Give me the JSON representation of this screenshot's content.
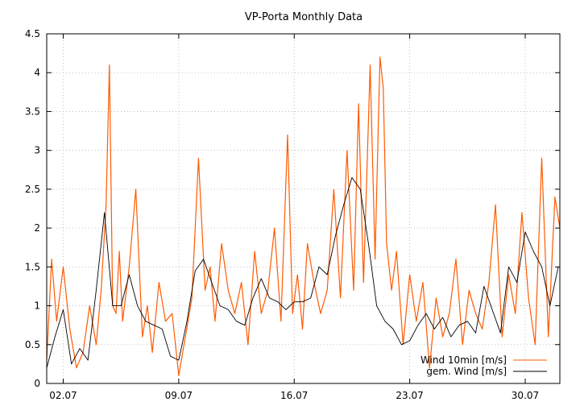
{
  "chart_data": {
    "type": "line",
    "title": "VP-Porta Monthly Data",
    "xlabel": "",
    "ylabel": "",
    "x_ticks": [
      "02.07",
      "09.07",
      "16.07",
      "23.07",
      "30.07"
    ],
    "x_tick_days": [
      2,
      9,
      16,
      23,
      30
    ],
    "xlim": [
      1,
      32.1
    ],
    "ylim": [
      0,
      4.5
    ],
    "y_ticks": [
      0,
      0.5,
      1,
      1.5,
      2,
      2.5,
      3,
      3.5,
      4,
      4.5
    ],
    "grid": true,
    "legend_position": "bottom-right",
    "series": [
      {
        "name": "Wind 10min [m/s]",
        "color": "#ff5a00",
        "x": [
          1.0,
          1.3,
          1.6,
          2.0,
          2.4,
          2.8,
          3.2,
          3.6,
          4.0,
          4.3,
          4.6,
          4.8,
          5.0,
          5.2,
          5.4,
          5.6,
          6.0,
          6.4,
          6.8,
          7.1,
          7.4,
          7.8,
          8.2,
          8.6,
          9.0,
          9.4,
          9.8,
          10.2,
          10.6,
          10.9,
          11.2,
          11.6,
          12.0,
          12.4,
          12.8,
          13.2,
          13.6,
          14.0,
          14.4,
          14.8,
          15.2,
          15.6,
          15.9,
          16.2,
          16.5,
          16.8,
          17.2,
          17.6,
          18.0,
          18.4,
          18.8,
          19.2,
          19.6,
          19.9,
          20.2,
          20.6,
          20.9,
          21.2,
          21.4,
          21.6,
          21.9,
          22.2,
          22.6,
          23.0,
          23.4,
          23.8,
          24.2,
          24.6,
          25.0,
          25.4,
          25.8,
          26.2,
          26.6,
          27.0,
          27.4,
          27.8,
          28.2,
          28.6,
          29.0,
          29.4,
          29.8,
          30.2,
          30.6,
          31.0,
          31.4,
          31.8,
          32.1
        ],
        "values": [
          0.3,
          1.6,
          0.8,
          1.5,
          0.7,
          0.2,
          0.4,
          1.0,
          0.5,
          1.2,
          2.3,
          4.1,
          1.0,
          0.9,
          1.7,
          0.8,
          1.5,
          2.5,
          0.6,
          1.0,
          0.4,
          1.3,
          0.8,
          0.9,
          0.1,
          0.6,
          1.1,
          2.9,
          1.2,
          1.5,
          0.8,
          1.8,
          1.2,
          0.9,
          1.3,
          0.5,
          1.7,
          0.9,
          1.2,
          2.0,
          0.8,
          3.2,
          0.9,
          1.4,
          0.7,
          1.8,
          1.3,
          0.9,
          1.2,
          2.5,
          1.1,
          3.0,
          1.2,
          3.6,
          1.3,
          4.1,
          1.6,
          4.2,
          3.8,
          1.8,
          1.2,
          1.7,
          0.5,
          1.4,
          0.8,
          1.3,
          0.2,
          1.1,
          0.6,
          0.9,
          1.6,
          0.5,
          1.2,
          0.9,
          0.7,
          1.3,
          2.3,
          0.6,
          1.4,
          0.9,
          2.2,
          1.1,
          0.5,
          2.9,
          0.6,
          2.4,
          2.0
        ]
      },
      {
        "name": "gem. Wind [m/s]",
        "color": "#000000",
        "x": [
          1.0,
          1.5,
          2.0,
          2.5,
          3.0,
          3.5,
          4.0,
          4.5,
          5.0,
          5.5,
          6.0,
          6.5,
          7.0,
          7.5,
          8.0,
          8.5,
          9.0,
          9.5,
          10.0,
          10.5,
          11.0,
          11.5,
          12.0,
          12.5,
          13.0,
          13.5,
          14.0,
          14.5,
          15.0,
          15.5,
          16.0,
          16.5,
          17.0,
          17.5,
          18.0,
          18.5,
          19.0,
          19.5,
          20.0,
          20.5,
          21.0,
          21.5,
          22.0,
          22.5,
          23.0,
          23.5,
          24.0,
          24.5,
          25.0,
          25.5,
          26.0,
          26.5,
          27.0,
          27.5,
          28.0,
          28.5,
          29.0,
          29.5,
          30.0,
          30.5,
          31.0,
          31.5,
          32.0
        ],
        "values": [
          0.2,
          0.6,
          0.95,
          0.25,
          0.45,
          0.3,
          1.2,
          2.2,
          1.0,
          1.0,
          1.4,
          1.0,
          0.8,
          0.75,
          0.7,
          0.35,
          0.3,
          0.8,
          1.45,
          1.6,
          1.3,
          1.0,
          0.95,
          0.8,
          0.75,
          1.1,
          1.35,
          1.1,
          1.05,
          0.95,
          1.05,
          1.05,
          1.1,
          1.5,
          1.4,
          1.9,
          2.3,
          2.65,
          2.5,
          1.8,
          1.0,
          0.8,
          0.7,
          0.5,
          0.55,
          0.75,
          0.9,
          0.7,
          0.85,
          0.6,
          0.75,
          0.8,
          0.65,
          1.25,
          0.95,
          0.65,
          1.5,
          1.3,
          1.95,
          1.7,
          1.5,
          1.0,
          1.5
        ]
      }
    ]
  }
}
